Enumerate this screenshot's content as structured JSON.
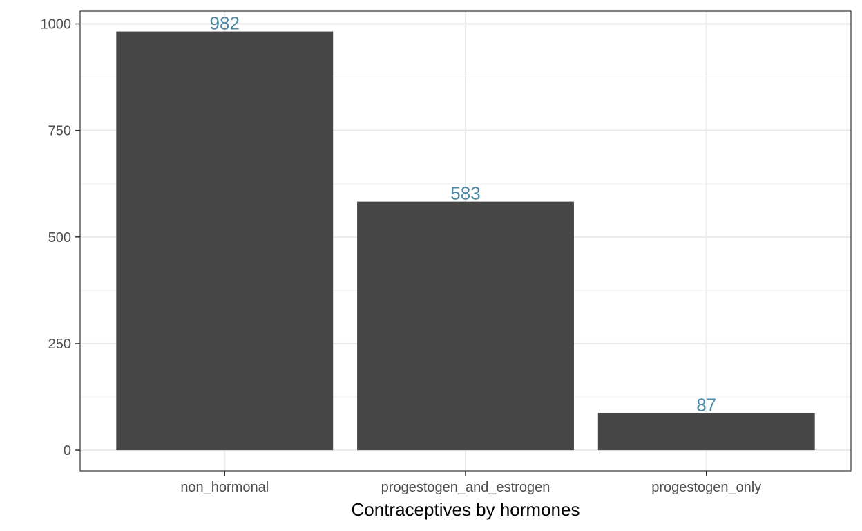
{
  "chart_data": {
    "type": "bar",
    "title": "",
    "xlabel": "Contraceptives by hormones",
    "ylabel": "",
    "categories": [
      "non_hormonal",
      "progestogen_and_estrogen",
      "progestogen_only"
    ],
    "values": [
      982,
      583,
      87
    ],
    "data_labels": [
      "982",
      "583",
      "87"
    ],
    "ylim": [
      -48.5,
      1030
    ],
    "yticks": [
      0,
      250,
      500,
      750,
      1000
    ],
    "ytick_labels": [
      "0",
      "250",
      "500",
      "750",
      "1000"
    ],
    "grid": true,
    "legend": "none",
    "colors": {
      "bar": "#474747",
      "data_label": "#4a88a6",
      "grid_major": "#ebebeb",
      "grid_minor": "#f2f2f2",
      "panel_border": "#333333"
    }
  }
}
